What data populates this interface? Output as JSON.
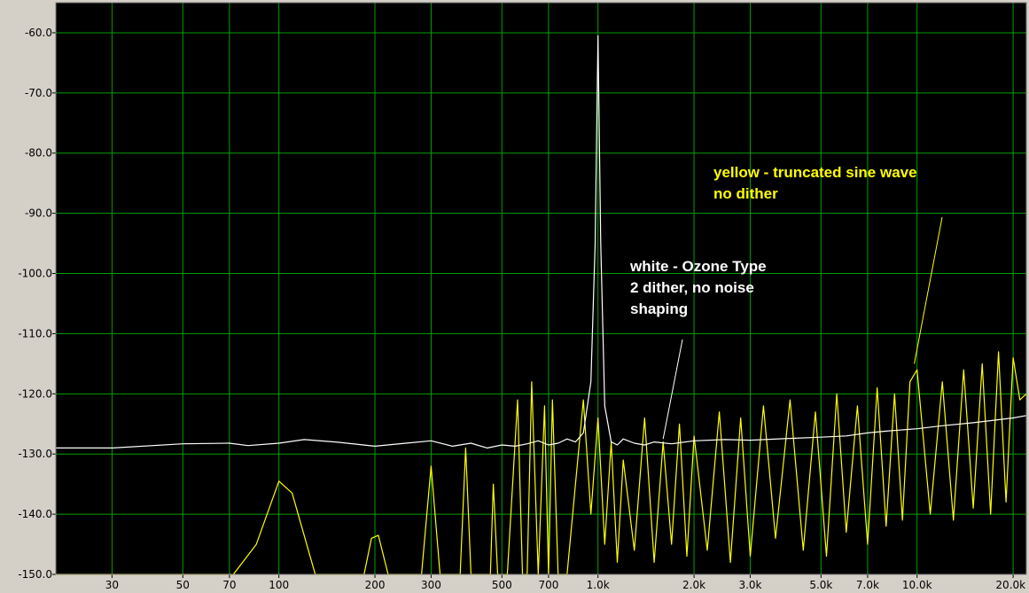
{
  "chart_data": {
    "type": "line",
    "title": "",
    "xlabel": "",
    "ylabel": "",
    "x_scale": "log",
    "xlim": [
      20,
      22000
    ],
    "ylim": [
      -150,
      -55
    ],
    "grid": true,
    "y_ticks": [
      {
        "value": -60,
        "label": "-60.0"
      },
      {
        "value": -70,
        "label": "-70.0"
      },
      {
        "value": -80,
        "label": "-80.0"
      },
      {
        "value": -90,
        "label": "-90.0"
      },
      {
        "value": -100,
        "label": "-100.0"
      },
      {
        "value": -110,
        "label": "-110.0"
      },
      {
        "value": -120,
        "label": "-120.0"
      },
      {
        "value": -130,
        "label": "-130.0"
      },
      {
        "value": -140,
        "label": "-140.0"
      },
      {
        "value": -150,
        "label": "-150.0"
      }
    ],
    "x_ticks": [
      {
        "value": 30,
        "label": "30"
      },
      {
        "value": 50,
        "label": "50"
      },
      {
        "value": 70,
        "label": "70"
      },
      {
        "value": 100,
        "label": "100"
      },
      {
        "value": 200,
        "label": "200"
      },
      {
        "value": 300,
        "label": "300"
      },
      {
        "value": 500,
        "label": "500"
      },
      {
        "value": 700,
        "label": "700"
      },
      {
        "value": 1000,
        "label": "1.0k"
      },
      {
        "value": 2000,
        "label": "2.0k"
      },
      {
        "value": 3000,
        "label": "3.0k"
      },
      {
        "value": 5000,
        "label": "5.0k"
      },
      {
        "value": 7000,
        "label": "7.0k"
      },
      {
        "value": 10000,
        "label": "10.0k"
      },
      {
        "value": 20000,
        "label": "20.0k"
      }
    ],
    "series": [
      {
        "color": "#ffff00",
        "x": [
          20,
          72,
          85,
          100,
          110,
          130,
          185,
          195,
          205,
          220,
          280,
          300,
          320,
          370,
          385,
          400,
          460,
          470,
          485,
          520,
          560,
          580,
          600,
          620,
          650,
          680,
          700,
          720,
          750,
          800,
          850,
          900,
          950,
          1000,
          1050,
          1100,
          1150,
          1200,
          1300,
          1400,
          1500,
          1600,
          1700,
          1800,
          1900,
          2000,
          2200,
          2400,
          2600,
          2800,
          3000,
          3300,
          3600,
          4000,
          4400,
          4800,
          5200,
          5600,
          6000,
          6500,
          7000,
          7500,
          8000,
          8500,
          9000,
          9500,
          10000,
          11000,
          12000,
          13000,
          14000,
          15000,
          16000,
          17000,
          18000,
          19000,
          20000,
          21000,
          22000
        ],
        "y": [
          -150,
          -150,
          -145,
          -134.5,
          -136.5,
          -150,
          -150,
          -144,
          -143.5,
          -150,
          -150,
          -132,
          -150,
          -150,
          -129,
          -150,
          -150,
          -135,
          -150,
          -150,
          -121,
          -150,
          -150,
          -118,
          -150,
          -122,
          -150,
          -121,
          -150,
          -150,
          -135,
          -121,
          -140,
          -124,
          -145,
          -128,
          -148,
          -131,
          -146,
          -124,
          -148,
          -128,
          -145,
          -125,
          -147,
          -127,
          -146,
          -123,
          -148,
          -124,
          -147,
          -122,
          -144,
          -121,
          -146,
          -123,
          -147,
          -120,
          -143,
          -122,
          -145,
          -119,
          -142,
          -120,
          -141,
          -118,
          -116,
          -140,
          -118,
          -141,
          -116,
          -139,
          -115,
          -140,
          -113,
          -138,
          -114,
          -121,
          -120
        ]
      },
      {
        "color": "#ffffff",
        "x": [
          20,
          30,
          50,
          70,
          80,
          100,
          120,
          150,
          200,
          250,
          300,
          350,
          400,
          450,
          500,
          550,
          600,
          650,
          700,
          750,
          800,
          850,
          900,
          950,
          980,
          1000,
          1020,
          1050,
          1100,
          1150,
          1200,
          1300,
          1400,
          1500,
          1700,
          2000,
          2500,
          3000,
          4000,
          5000,
          6000,
          7000,
          8000,
          10000,
          12000,
          15000,
          18000,
          20000,
          22000
        ],
        "y": [
          -129,
          -129,
          -128.3,
          -128.2,
          -128.6,
          -128.2,
          -127.6,
          -128,
          -128.7,
          -128.2,
          -127.8,
          -128.7,
          -128.2,
          -129,
          -128.5,
          -128.7,
          -128.3,
          -127.8,
          -128.5,
          -128.2,
          -127.5,
          -128,
          -126.5,
          -118,
          -95,
          -60.5,
          -95,
          -122,
          -128,
          -128.5,
          -127.5,
          -128.2,
          -128.5,
          -128,
          -128.3,
          -127.8,
          -127.6,
          -127.7,
          -127.4,
          -127.2,
          -127,
          -126.5,
          -126.2,
          -125.8,
          -125.3,
          -124.8,
          -124.3,
          -124,
          -123.6
        ]
      }
    ],
    "annotations": [
      {
        "text_lines": [
          "yellow - truncated sine wave",
          "no dither"
        ],
        "color": "#ffff00",
        "pointer_to": [
          9800,
          -115
        ]
      },
      {
        "text_lines": [
          "white - Ozone Type",
          "2 dither, no noise",
          "shaping"
        ],
        "color": "#ffffff",
        "pointer_to": [
          1600,
          -127.5
        ]
      }
    ]
  }
}
